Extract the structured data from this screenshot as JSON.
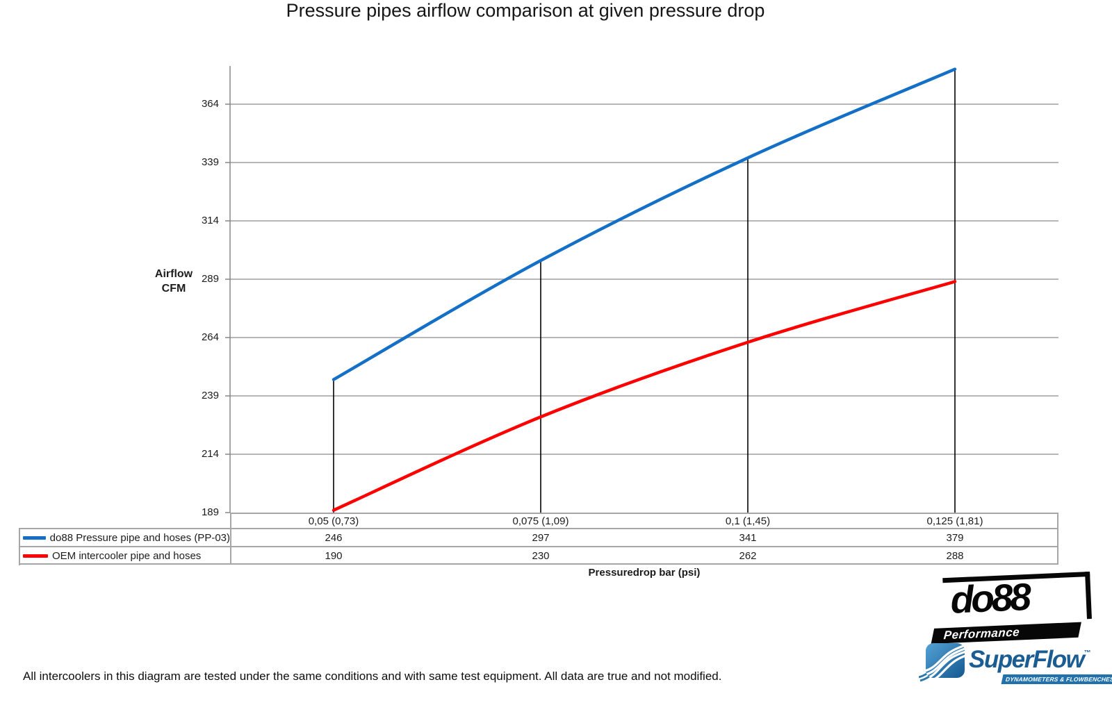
{
  "title": "Pressure pipes airflow comparison at given pressure drop",
  "y_axis": {
    "label_line1": "Airflow",
    "label_line2": "CFM"
  },
  "x_axis": {
    "title": "Pressuredrop bar (psi)"
  },
  "footer_note": "All intercoolers in this diagram are tested under the same conditions and with same test equipment. All data are true and not modified.",
  "logos": {
    "do88": {
      "name": "do88",
      "tagline": "Performance"
    },
    "superflow": {
      "name": "SuperFlow",
      "trademark": "™",
      "tagline": "DYNAMOMETERS & FLOWBENCHES"
    }
  },
  "chart_data": {
    "type": "line",
    "title": "Pressure pipes airflow comparison at given pressure drop",
    "xlabel": "Pressuredrop bar (psi)",
    "ylabel": "Airflow CFM",
    "categories": [
      "0,05 (0,73)",
      "0,075 (1,09)",
      "0,1 (1,45)",
      "0,125 (1,81)"
    ],
    "series": [
      {
        "name": "do88 Pressure pipe and hoses (PP-03)",
        "color": "#1470c6",
        "values": [
          246,
          297,
          341,
          379
        ]
      },
      {
        "name": "OEM intercooler pipe and hoses",
        "color": "#fe0000",
        "values": [
          190,
          230,
          262,
          288
        ]
      }
    ],
    "yticks": [
      189,
      214,
      239,
      264,
      289,
      314,
      339,
      364
    ],
    "ylim": [
      189,
      382
    ],
    "grid": "horizontal",
    "grid_color": "#9e9e9e",
    "drop_lines": true,
    "legend_position": "table-left"
  }
}
